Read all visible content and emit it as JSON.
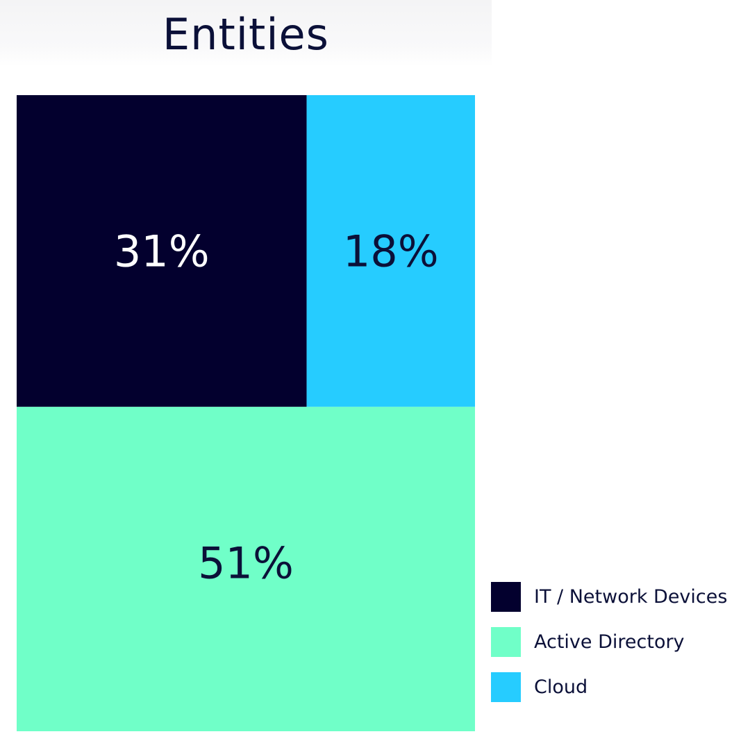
{
  "chart_data": {
    "type": "treemap",
    "title": "Entities",
    "unit": "%",
    "items": [
      {
        "name": "IT / Network Devices",
        "value": 31,
        "label": "31%",
        "color": "#03002e",
        "label_color": "#ffffff"
      },
      {
        "name": "Cloud",
        "value": 18,
        "label": "18%",
        "color": "#26ccff",
        "label_color": "#0b1038"
      },
      {
        "name": "Active Directory",
        "value": 51,
        "label": "51%",
        "color": "#70ffc8",
        "label_color": "#0b1038"
      }
    ],
    "legend": {
      "position": "bottom-right",
      "entries": [
        {
          "label": "IT / Network Devices",
          "color": "#03002e"
        },
        {
          "label": "Active Directory",
          "color": "#70ffc8"
        },
        {
          "label": "Cloud",
          "color": "#26ccff"
        }
      ]
    }
  }
}
